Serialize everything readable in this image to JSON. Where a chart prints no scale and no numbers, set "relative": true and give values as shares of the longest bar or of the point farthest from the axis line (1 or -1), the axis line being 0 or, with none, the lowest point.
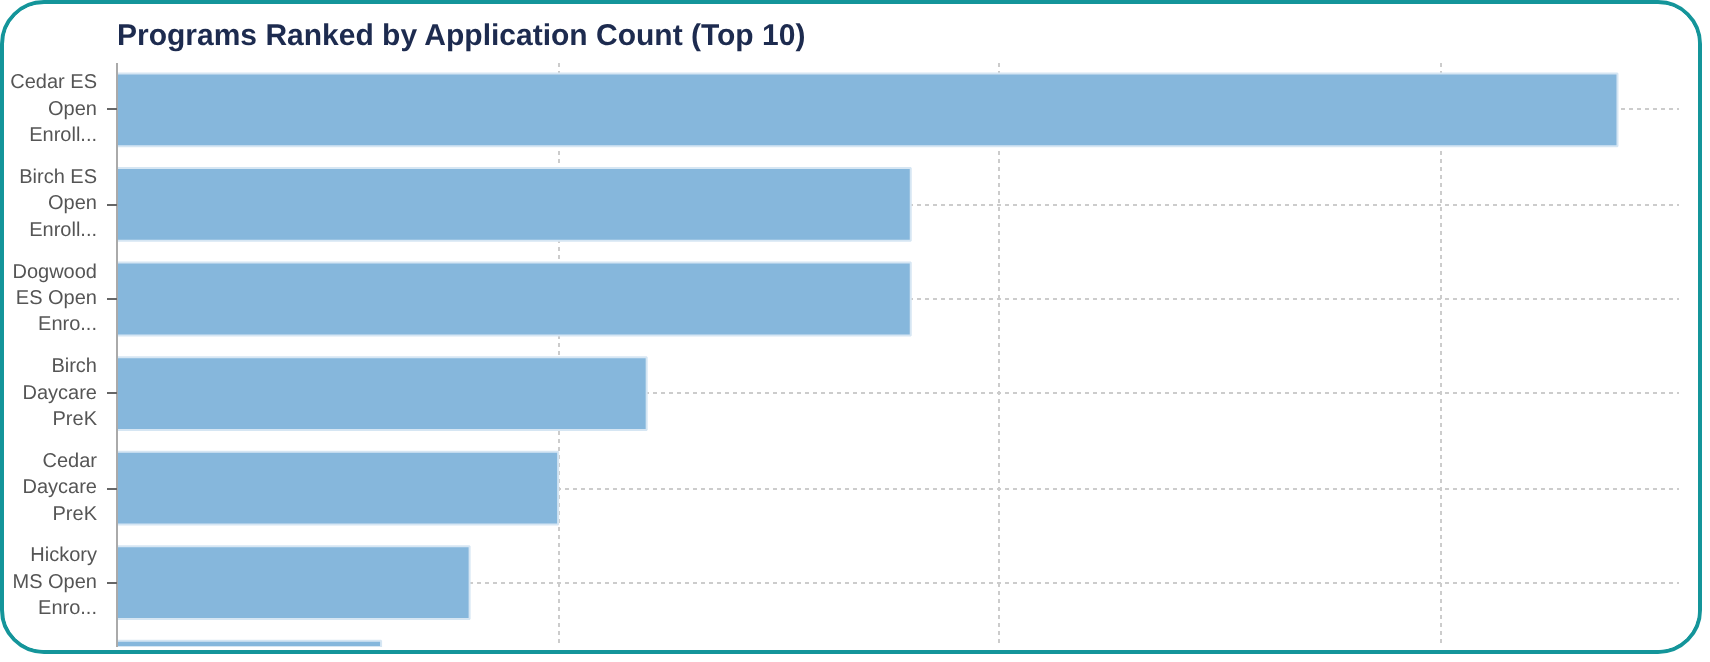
{
  "chart_data": {
    "type": "bar",
    "orientation": "horizontal",
    "relative": true,
    "title": "Programs Ranked by Application Count (Top 10)",
    "categories": [
      "Cedar ES\nOpen\nEnroll...",
      "Birch ES\nOpen\nEnroll...",
      "Dogwood\nES Open\nEnro...",
      "Birch\nDaycare\nPreK",
      "Cedar\nDaycare\nPreK",
      "Hickory\nMS Open\nEnro...",
      null
    ],
    "values": [
      1,
      0.529,
      0.529,
      0.353,
      0.294,
      0.235,
      0.176
    ],
    "color": "#86b7dc",
    "grid": true
  }
}
